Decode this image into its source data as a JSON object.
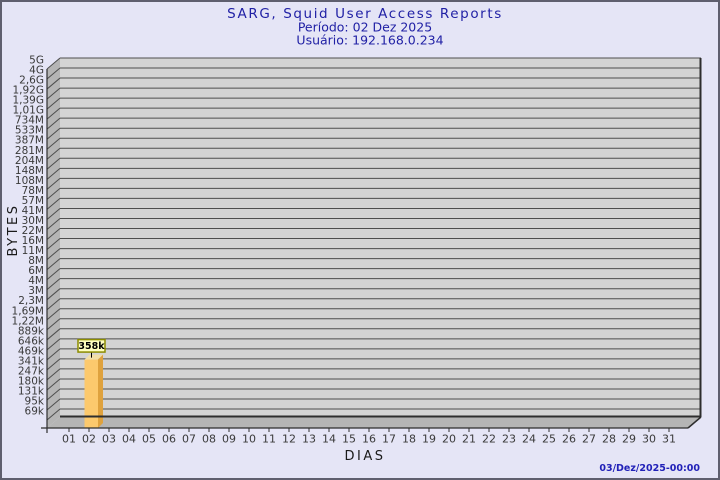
{
  "header": {
    "title": "SARG, Squid User Access Reports",
    "period_line": "Período: 02 Dez 2025",
    "user_line": "Usuário: 192.168.0.234",
    "text_color": "#2121A5"
  },
  "footer": {
    "timestamp": "03/Dez/2025-00:00",
    "text_color": "#2121B8"
  },
  "chart_data": {
    "type": "bar",
    "style": "3d-bar",
    "title": "SARG, Squid User Access Reports",
    "subtitle": [
      "Período: 02 Dez 2025",
      "Usuário: 192.168.0.234"
    ],
    "xlabel": "DIAS",
    "ylabel": "BYTES",
    "x_categories": [
      "01",
      "02",
      "03",
      "04",
      "05",
      "06",
      "07",
      "08",
      "09",
      "10",
      "11",
      "12",
      "13",
      "14",
      "15",
      "16",
      "17",
      "18",
      "19",
      "20",
      "21",
      "22",
      "23",
      "24",
      "25",
      "26",
      "27",
      "28",
      "29",
      "30",
      "31"
    ],
    "y_tick_labels": [
      "5G",
      "4G",
      "2,6G",
      "1,92G",
      "1,39G",
      "1,01G",
      "734M",
      "533M",
      "387M",
      "281M",
      "204M",
      "148M",
      "108M",
      "78M",
      "57M",
      "41M",
      "30M",
      "22M",
      "16M",
      "11M",
      "8M",
      "6M",
      "4M",
      "3M",
      "2,3M",
      "1,69M",
      "1,22M",
      "889k",
      "646k",
      "469k",
      "341k",
      "247k",
      "180k",
      "131k",
      "95k",
      "69k"
    ],
    "y_axis_top": "5G",
    "y_axis_bottom": "69k",
    "grid": "horizontal lines at every y tick",
    "legend": "none",
    "bars": [
      {
        "day": "02",
        "value_label": "358k",
        "value_bytes": 358000
      }
    ],
    "series": [
      {
        "name": "bytes",
        "values": [
          0,
          358000,
          0,
          0,
          0,
          0,
          0,
          0,
          0,
          0,
          0,
          0,
          0,
          0,
          0,
          0,
          0,
          0,
          0,
          0,
          0,
          0,
          0,
          0,
          0,
          0,
          0,
          0,
          0,
          0,
          0
        ]
      }
    ],
    "colors": {
      "bar_front": "#FCC96D",
      "bar_side": "#DFA23E",
      "bar_top": "#F2DFA8",
      "annotation_bg": "#FFFFC0",
      "annotation_border": "#8C8C00",
      "plot_back_wall": "#D4D4D4",
      "plot_side_wall": "#B5B5B5",
      "grid_line": "#4E4E4E",
      "axis_line": "#2E2E2E",
      "background": "#E5E5F6"
    }
  }
}
